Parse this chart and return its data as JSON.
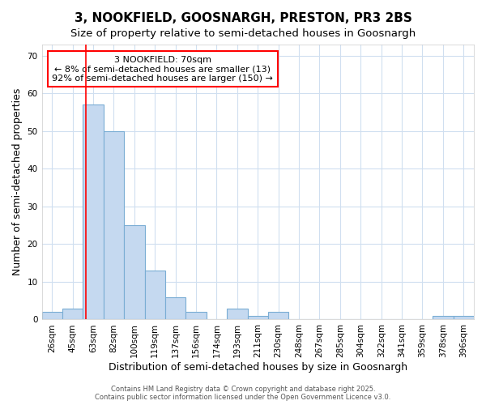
{
  "title1": "3, NOOKFIELD, GOOSNARGH, PRESTON, PR3 2BS",
  "title2": "Size of property relative to semi-detached houses in Goosnargh",
  "xlabel": "Distribution of semi-detached houses by size in Goosnargh",
  "ylabel": "Number of semi-detached properties",
  "categories": [
    "26sqm",
    "45sqm",
    "63sqm",
    "82sqm",
    "100sqm",
    "119sqm",
    "137sqm",
    "156sqm",
    "174sqm",
    "193sqm",
    "211sqm",
    "230sqm",
    "248sqm",
    "267sqm",
    "285sqm",
    "304sqm",
    "322sqm",
    "341sqm",
    "359sqm",
    "378sqm",
    "396sqm"
  ],
  "values": [
    2,
    3,
    57,
    50,
    25,
    13,
    6,
    2,
    0,
    3,
    1,
    2,
    0,
    0,
    0,
    0,
    0,
    0,
    0,
    1,
    1
  ],
  "bar_color": "#c5d9f0",
  "bar_edge_color": "#7aadd4",
  "red_line_x": 2,
  "annotation_title": "3 NOOKFIELD: 70sqm",
  "annotation_line1": "← 8% of semi-detached houses are smaller (13)",
  "annotation_line2": "92% of semi-detached houses are larger (150) →",
  "ylim": [
    0,
    73
  ],
  "yticks": [
    0,
    10,
    20,
    30,
    40,
    50,
    60,
    70
  ],
  "footer1": "Contains HM Land Registry data © Crown copyright and database right 2025.",
  "footer2": "Contains public sector information licensed under the Open Government Licence v3.0.",
  "bg_color": "#ffffff",
  "plot_bg_color": "#ffffff",
  "grid_color": "#d0dff0",
  "title_fontsize": 11,
  "subtitle_fontsize": 9.5,
  "tick_fontsize": 7.5,
  "label_fontsize": 9,
  "footer_fontsize": 6
}
